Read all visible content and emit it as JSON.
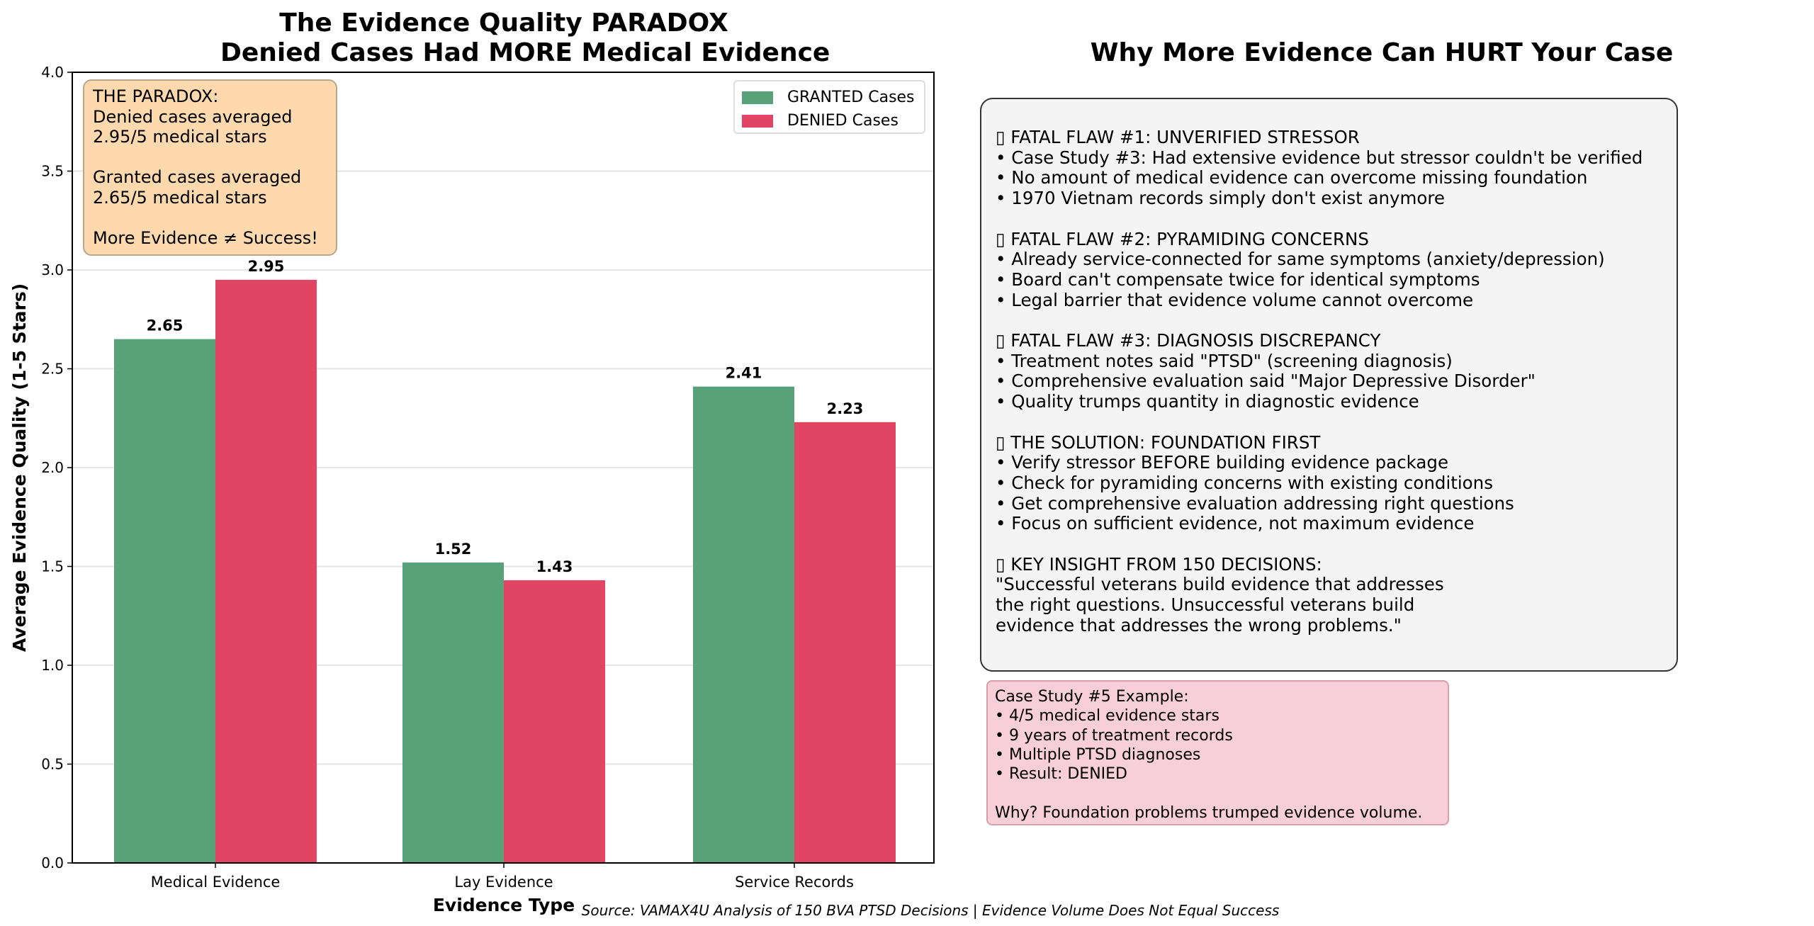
{
  "left_title": [
    "The Evidence Quality PARADOX",
    "Denied Cases Had MORE Medical Evidence"
  ],
  "right_title": "Why More Evidence Can HURT Your Case",
  "chart_data": {
    "type": "bar",
    "title": "The Evidence Quality PARADOX\nDenied Cases Had MORE Medical Evidence",
    "xlabel": "Evidence Type",
    "ylabel": "Average Evidence Quality (1-5 Stars)",
    "categories": [
      "Medical Evidence",
      "Lay Evidence",
      "Service Records"
    ],
    "series": [
      {
        "name": "GRANTED Cases",
        "values": [
          2.65,
          1.52,
          2.41
        ],
        "color": "#58a279"
      },
      {
        "name": "DENIED Cases",
        "values": [
          2.95,
          1.43,
          2.23
        ],
        "color": "#e24563"
      }
    ],
    "data_labels": [
      [
        "2.65",
        "1.52",
        "2.41"
      ],
      [
        "2.95",
        "1.43",
        "2.23"
      ]
    ],
    "ylim": [
      0,
      4.0
    ],
    "yticks": [
      "0.0",
      "0.5",
      "1.0",
      "1.5",
      "2.0",
      "2.5",
      "3.0",
      "3.5",
      "4.0"
    ],
    "grid": "horizontal",
    "legend_position": "top-right"
  },
  "paradox_box": "THE PARADOX:\nDenied cases averaged\n2.95/5 medical stars\n\nGranted cases averaged\n2.65/5 medical stars\n\nMore Evidence ≠ Success!",
  "info_sections": [
    {
      "heading": "▯ FATAL FLAW #1: UNVERIFIED STRESSOR",
      "lines": [
        "• Case Study #3: Had extensive evidence but stressor couldn't be verified",
        "• No amount of medical evidence can overcome missing foundation",
        "• 1970 Vietnam records simply don't exist anymore"
      ]
    },
    {
      "heading": "▯ FATAL FLAW #2: PYRAMIDING CONCERNS",
      "lines": [
        "• Already service-connected for same symptoms (anxiety/depression)",
        "• Board can't compensate twice for identical symptoms",
        "• Legal barrier that evidence volume cannot overcome"
      ]
    },
    {
      "heading": "▯ FATAL FLAW #3: DIAGNOSIS DISCREPANCY",
      "lines": [
        "• Treatment notes said \"PTSD\" (screening diagnosis)",
        "• Comprehensive evaluation said \"Major Depressive Disorder\"",
        "• Quality trumps quantity in diagnostic evidence"
      ]
    },
    {
      "heading": "▯ THE SOLUTION: FOUNDATION FIRST",
      "lines": [
        "• Verify stressor BEFORE building evidence package",
        "• Check for pyramiding concerns with existing conditions",
        "• Get comprehensive evaluation addressing right questions",
        "• Focus on sufficient evidence, not maximum evidence"
      ]
    },
    {
      "heading": "▯ KEY INSIGHT FROM 150 DECISIONS:",
      "lines": [
        "\"Successful veterans build evidence that addresses",
        "the right questions. Unsuccessful veterans build",
        "evidence that addresses the wrong problems.\""
      ]
    }
  ],
  "case_study_box": "Case Study #5 Example:\n• 4/5 medical evidence stars\n• 9 years of treatment records\n• Multiple PTSD diagnoses\n• Result: DENIED\n\nWhy? Foundation problems trumped evidence volume.",
  "source": "Source: VAMAX4U Analysis of 150 BVA PTSD Decisions | Evidence Volume Does Not Equal Success"
}
